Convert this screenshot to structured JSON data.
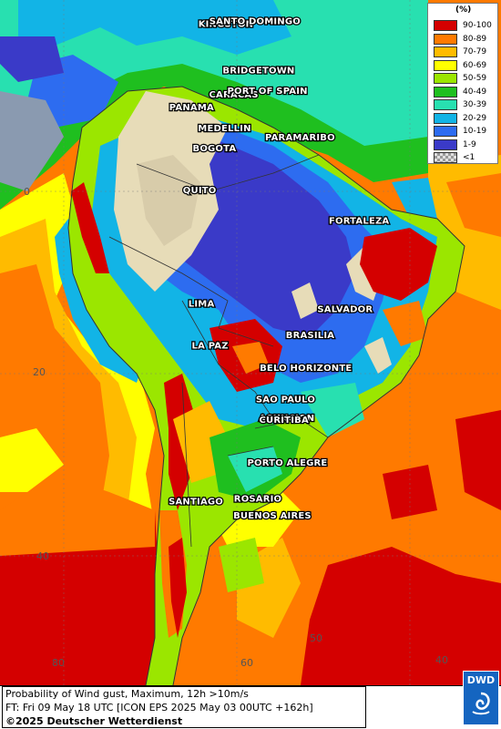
{
  "map": {
    "cities": [
      {
        "name": "KINGSTON",
        "lon": -76.8,
        "lat": 18.0
      },
      {
        "name": "SANTO DOMINGO",
        "lon": -69.9,
        "lat": 18.5
      },
      {
        "name": "BRIDGETOWN",
        "lon": -59.6,
        "lat": 13.1
      },
      {
        "name": "CARACAS",
        "lon": -66.9,
        "lat": 10.5
      },
      {
        "name": "PORT OF SPAIN",
        "lon": -61.5,
        "lat": 10.7
      },
      {
        "name": "PANAMA",
        "lon": -79.5,
        "lat": 9.0
      },
      {
        "name": "MEDELLIN",
        "lon": -75.6,
        "lat": 6.2
      },
      {
        "name": "BOGOTA",
        "lon": -74.1,
        "lat": 4.7
      },
      {
        "name": "PARAMARIBO",
        "lon": -55.2,
        "lat": 5.8
      },
      {
        "name": "QUITO",
        "lon": -78.5,
        "lat": -0.2
      },
      {
        "name": "FORTALEZA",
        "lon": -38.5,
        "lat": -3.7
      },
      {
        "name": "LIMA",
        "lon": -77.0,
        "lat": -12.0
      },
      {
        "name": "SALVADOR",
        "lon": -38.5,
        "lat": -13.0
      },
      {
        "name": "BRASILIA",
        "lon": -47.9,
        "lat": -15.8
      },
      {
        "name": "LA PAZ",
        "lon": -68.1,
        "lat": -16.5
      },
      {
        "name": "BELO HORIZONTE",
        "lon": -43.9,
        "lat": -19.9
      },
      {
        "name": "SAO PAULO",
        "lon": -46.6,
        "lat": -23.5
      },
      {
        "name": "ASUNCION",
        "lon": -57.6,
        "lat": -25.3
      },
      {
        "name": "CURITIBA",
        "lon": -49.3,
        "lat": -25.4
      },
      {
        "name": "PORTO ALEGRE",
        "lon": -51.2,
        "lat": -30.0
      },
      {
        "name": "ROSARIO",
        "lon": -60.6,
        "lat": -32.9
      },
      {
        "name": "SANTIAGO",
        "lon": -70.7,
        "lat": -33.4
      },
      {
        "name": "BUENOS AIRES",
        "lon": -58.4,
        "lat": -34.6
      }
    ],
    "graticule_labels": [
      "0",
      "20",
      "40",
      "80",
      "60",
      "50",
      "40"
    ]
  },
  "legend": {
    "unit": "(%)",
    "items": [
      {
        "label": "90-100",
        "color": "#d40000"
      },
      {
        "label": "80-89",
        "color": "#ff7a00"
      },
      {
        "label": "70-79",
        "color": "#ffbb00"
      },
      {
        "label": "60-69",
        "color": "#ffff00"
      },
      {
        "label": "50-59",
        "color": "#9be600"
      },
      {
        "label": "40-49",
        "color": "#1fbf1f"
      },
      {
        "label": "30-39",
        "color": "#28e0b0"
      },
      {
        "label": "20-29",
        "color": "#12b4e6"
      },
      {
        "label": "10-19",
        "color": "#2d6cf0"
      },
      {
        "label": "1-9",
        "color": "#3a3ac8"
      },
      {
        "label": "<1",
        "color": "#c8c8c8"
      }
    ]
  },
  "footer": {
    "line1": "Probability of Wind gust, Maximum, 12h >10m/s",
    "line2": "FT: Fri 09 May 18 UTC [ICON EPS 2025 May 03 00UTC +162h]",
    "line3": "©2025 Deutscher Wetterdienst"
  },
  "logo": {
    "text": "DWD"
  }
}
